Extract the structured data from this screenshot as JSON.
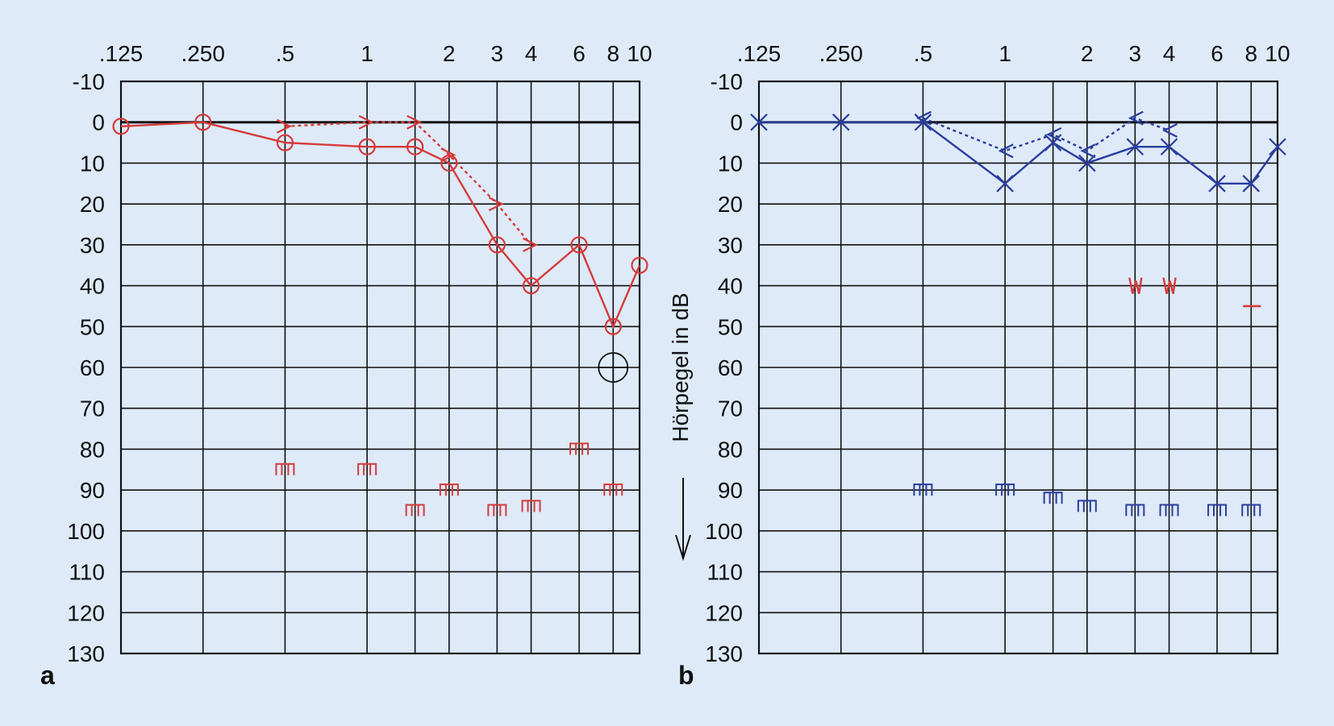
{
  "chart_data": [
    {
      "type": "line",
      "panel_label": "a",
      "x_scale": "log",
      "x_tick_labels": [
        ".125",
        ".250",
        ".5",
        "1",
        "2",
        "3",
        "4",
        "6",
        "8",
        "10"
      ],
      "x_ticks": [
        0.125,
        0.25,
        0.5,
        1,
        2,
        3,
        4,
        6,
        8,
        10
      ],
      "x_extra_gridlines": [
        1.5
      ],
      "y_tick_labels": [
        "-10",
        "0",
        "10",
        "20",
        "30",
        "40",
        "50",
        "60",
        "70",
        "80",
        "90",
        "100",
        "110",
        "120",
        "130"
      ],
      "ylim": [
        -10,
        130
      ],
      "y_inverted": true,
      "grid": true,
      "color": "#d63a3a",
      "series": [
        {
          "marker": "circle",
          "style": "solid",
          "x": [
            0.125,
            0.25,
            0.5,
            1,
            1.5,
            2,
            3,
            4,
            6,
            8,
            10
          ],
          "y": [
            1,
            0,
            5,
            6,
            6,
            10,
            30,
            40,
            30,
            50,
            35
          ]
        },
        {
          "marker": "bracket-right",
          "style": "dotted",
          "x": [
            0.5,
            1,
            1.5,
            2,
            3,
            4
          ],
          "y": [
            1,
            0,
            0,
            8,
            20,
            30
          ]
        },
        {
          "marker": "mask",
          "style": "none",
          "x": [
            0.5,
            1,
            1.5,
            2,
            3,
            4,
            6,
            8
          ],
          "y": [
            85,
            85,
            95,
            90,
            95,
            94,
            80,
            90
          ]
        }
      ],
      "extra_marks": [
        {
          "marker": "crossed-circle",
          "x": 8,
          "y": 60,
          "color": "#111111"
        }
      ]
    },
    {
      "type": "line",
      "panel_label": "b",
      "ylabel": "Hörpegel in dB",
      "x_scale": "log",
      "x_tick_labels": [
        ".125",
        ".250",
        ".5",
        "1",
        "2",
        "3",
        "4",
        "6",
        "8",
        "10"
      ],
      "x_ticks": [
        0.125,
        0.25,
        0.5,
        1,
        2,
        3,
        4,
        6,
        8,
        10
      ],
      "x_extra_gridlines": [
        1.5
      ],
      "y_tick_labels": [
        "-10",
        "0",
        "10",
        "20",
        "30",
        "40",
        "50",
        "60",
        "70",
        "80",
        "90",
        "100",
        "110",
        "120",
        "130"
      ],
      "ylim": [
        -10,
        130
      ],
      "y_inverted": true,
      "grid": true,
      "color": "#2a3d9e",
      "series": [
        {
          "marker": "x",
          "style": "solid",
          "x": [
            0.125,
            0.25,
            0.5,
            1,
            1.5,
            2,
            3,
            4,
            6,
            8,
            10
          ],
          "y": [
            0,
            0,
            0,
            15,
            5,
            10,
            6,
            6,
            15,
            15,
            6
          ]
        },
        {
          "marker": "bracket-left",
          "style": "dotted",
          "x": [
            0.5,
            1,
            1.5,
            2,
            3,
            4
          ],
          "y": [
            -1,
            7,
            3,
            7,
            -1,
            2
          ]
        },
        {
          "marker": "mask",
          "style": "none",
          "x": [
            0.5,
            1,
            1.5,
            2,
            3,
            4,
            6,
            8
          ],
          "y": [
            90,
            90,
            92,
            94,
            95,
            95,
            95,
            95
          ]
        }
      ],
      "extra_marks": [
        {
          "marker": "red-zigzag",
          "x": 3,
          "y": 40,
          "color": "#d63a3a"
        },
        {
          "marker": "red-zigzag",
          "x": 4,
          "y": 40,
          "color": "#d63a3a"
        },
        {
          "marker": "red-dash",
          "x": 8,
          "y": 45,
          "color": "#d63a3a"
        }
      ]
    }
  ]
}
